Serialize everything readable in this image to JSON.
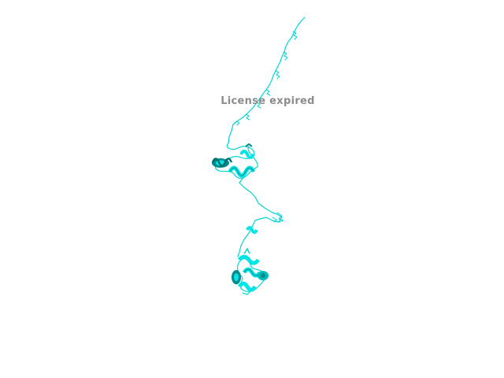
{
  "viewer": {
    "watermark": "License expired"
  },
  "structure": {
    "representation": "cartoon",
    "color": "#00e5e5",
    "shade_color": "#008c8c",
    "background": "#ffffff"
  }
}
